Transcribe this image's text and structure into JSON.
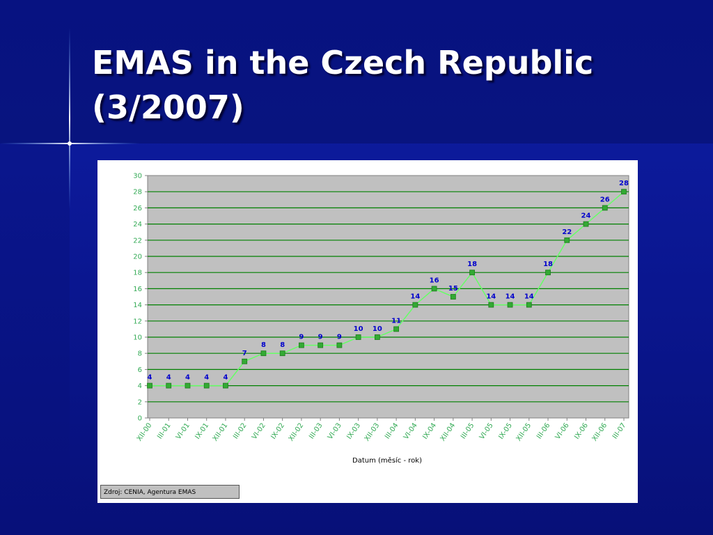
{
  "slide": {
    "title_line1": "EMAS in the Czech Republic",
    "title_line2": "(3/2007)"
  },
  "colors": {
    "background": "#0a168f",
    "plot_area": "#c0c0c0",
    "gridline": "#008000",
    "series_line": "#66ff66",
    "marker": "#33aa33",
    "data_label": "#0000cc",
    "tick_label": "#33aa55"
  },
  "chart_data": {
    "type": "line",
    "title": "",
    "xlabel": "Datum (měsíc - rok)",
    "ylabel": "",
    "ylim": [
      0,
      30
    ],
    "yticks": [
      0,
      2,
      4,
      6,
      8,
      10,
      12,
      14,
      16,
      18,
      20,
      22,
      24,
      26,
      28,
      30
    ],
    "grid": true,
    "legend": "none",
    "categories": [
      "XII-00",
      "III-01",
      "VI-01",
      "IX-01",
      "XII-01",
      "III-02",
      "VI-02",
      "IX-02",
      "XII-02",
      "III-03",
      "VI-03",
      "IX-03",
      "XII-03",
      "III-04",
      "VI-04",
      "IX-04",
      "XII-04",
      "III-05",
      "VI-05",
      "IX-05",
      "XII-05",
      "III-06",
      "VI-06",
      "IX-06",
      "XII-06",
      "III-07"
    ],
    "series": [
      {
        "values": [
          4,
          4,
          4,
          4,
          4,
          7,
          8,
          8,
          9,
          9,
          9,
          10,
          10,
          11,
          14,
          16,
          15,
          18,
          14,
          14,
          14,
          18,
          22,
          24,
          26,
          28
        ]
      }
    ],
    "source_note": "Zdroj: CENIA, Agentura EMAS"
  }
}
